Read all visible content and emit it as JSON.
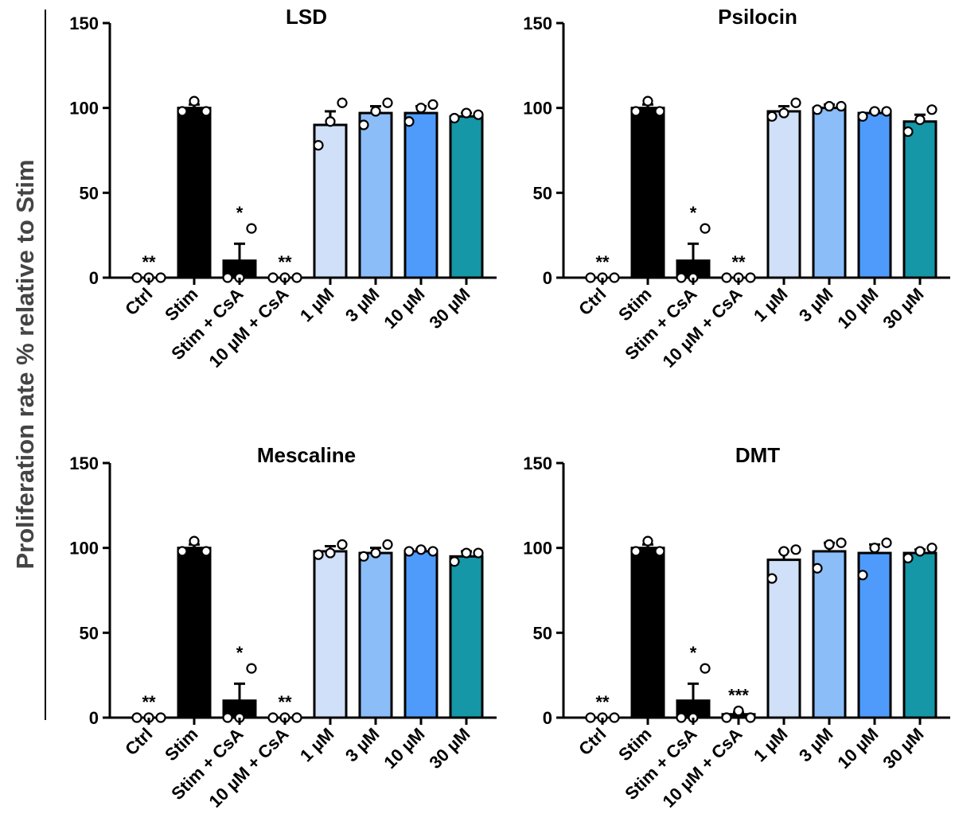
{
  "y_axis_label": "Proliferation rate % relative to Stim",
  "chart_data": [
    {
      "type": "bar",
      "title": "LSD",
      "ylabel": "Proliferation rate % relative to Stim",
      "ylim": [
        0,
        150
      ],
      "yticks": [
        0,
        50,
        100,
        150
      ],
      "categories": [
        "Ctrl",
        "Stim",
        "Stim + CsA",
        "10 µM + CsA",
        "1 µM",
        "3 µM",
        "10 µM",
        "30 µM"
      ],
      "values": [
        0,
        100,
        10,
        0,
        90,
        97,
        97,
        95
      ],
      "sem": [
        0,
        2,
        10,
        0,
        8,
        4,
        4,
        2
      ],
      "points": [
        [
          0,
          0,
          0
        ],
        [
          98,
          104,
          98
        ],
        [
          0,
          0,
          29
        ],
        [
          0,
          0,
          0
        ],
        [
          78,
          92,
          103
        ],
        [
          90,
          98,
          103
        ],
        [
          92,
          100,
          102
        ],
        [
          94,
          97,
          96
        ]
      ],
      "significance": [
        "**",
        "",
        "*",
        "**",
        "",
        "",
        "",
        ""
      ],
      "colors": [
        "#000000",
        "#000000",
        "#000000",
        "#000000",
        "#cfe0f8",
        "#8bbdf9",
        "#4f9bfb",
        "#1597a7"
      ]
    },
    {
      "type": "bar",
      "title": "Psilocin",
      "ylabel": "Proliferation rate % relative to Stim",
      "ylim": [
        0,
        150
      ],
      "yticks": [
        0,
        50,
        100,
        150
      ],
      "categories": [
        "Ctrl",
        "Stim",
        "Stim + CsA",
        "10 µM + CsA",
        "1 µM",
        "3 µM",
        "10 µM",
        "30 µM"
      ],
      "values": [
        0,
        100,
        10,
        0,
        98,
        100,
        97,
        92
      ],
      "sem": [
        0,
        2,
        10,
        0,
        3,
        2,
        1,
        4
      ],
      "points": [
        [
          0,
          0,
          0
        ],
        [
          98,
          104,
          98
        ],
        [
          0,
          0,
          29
        ],
        [
          0,
          0,
          0
        ],
        [
          95,
          97,
          103
        ],
        [
          99,
          101,
          101
        ],
        [
          95,
          98,
          98
        ],
        [
          86,
          93,
          99
        ]
      ],
      "significance": [
        "**",
        "",
        "*",
        "**",
        "",
        "",
        "",
        ""
      ],
      "colors": [
        "#000000",
        "#000000",
        "#000000",
        "#000000",
        "#cfe0f8",
        "#8bbdf9",
        "#4f9bfb",
        "#1597a7"
      ]
    },
    {
      "type": "bar",
      "title": "Mescaline",
      "ylabel": "Proliferation rate % relative to Stim",
      "ylim": [
        0,
        150
      ],
      "yticks": [
        0,
        50,
        100,
        150
      ],
      "categories": [
        "Ctrl",
        "Stim",
        "Stim + CsA",
        "10 µM + CsA",
        "1 µM",
        "3 µM",
        "10 µM",
        "30 µM"
      ],
      "values": [
        0,
        100,
        10,
        0,
        98,
        97,
        98,
        95
      ],
      "sem": [
        0,
        2,
        10,
        0,
        3,
        3,
        1,
        3
      ],
      "points": [
        [
          0,
          0,
          0
        ],
        [
          98,
          104,
          98
        ],
        [
          0,
          0,
          29
        ],
        [
          0,
          0,
          0
        ],
        [
          96,
          97,
          102
        ],
        [
          95,
          97,
          102
        ],
        [
          98,
          99,
          98
        ],
        [
          92,
          97,
          97
        ]
      ],
      "significance": [
        "**",
        "",
        "*",
        "**",
        "",
        "",
        "",
        ""
      ],
      "colors": [
        "#000000",
        "#000000",
        "#000000",
        "#000000",
        "#cfe0f8",
        "#8bbdf9",
        "#4f9bfb",
        "#1597a7"
      ]
    },
    {
      "type": "bar",
      "title": "DMT",
      "ylabel": "Proliferation rate % relative to Stim",
      "ylim": [
        0,
        150
      ],
      "yticks": [
        0,
        50,
        100,
        150
      ],
      "categories": [
        "Ctrl",
        "Stim",
        "Stim + CsA",
        "10 µM + CsA",
        "1 µM",
        "3 µM",
        "10 µM",
        "30 µM"
      ],
      "values": [
        0,
        100,
        10,
        2,
        93,
        98,
        97,
        97
      ],
      "sem": [
        0,
        2,
        10,
        1,
        5,
        5,
        5,
        2
      ],
      "points": [
        [
          0,
          0,
          0
        ],
        [
          98,
          104,
          98
        ],
        [
          0,
          0,
          29
        ],
        [
          0,
          4,
          0
        ],
        [
          82,
          98,
          99
        ],
        [
          88,
          102,
          103
        ],
        [
          84,
          100,
          103
        ],
        [
          94,
          98,
          100
        ]
      ],
      "significance": [
        "**",
        "",
        "*",
        "***",
        "",
        "",
        "",
        ""
      ],
      "colors": [
        "#000000",
        "#000000",
        "#000000",
        "#000000",
        "#cfe0f8",
        "#8bbdf9",
        "#4f9bfb",
        "#1597a7"
      ]
    }
  ]
}
